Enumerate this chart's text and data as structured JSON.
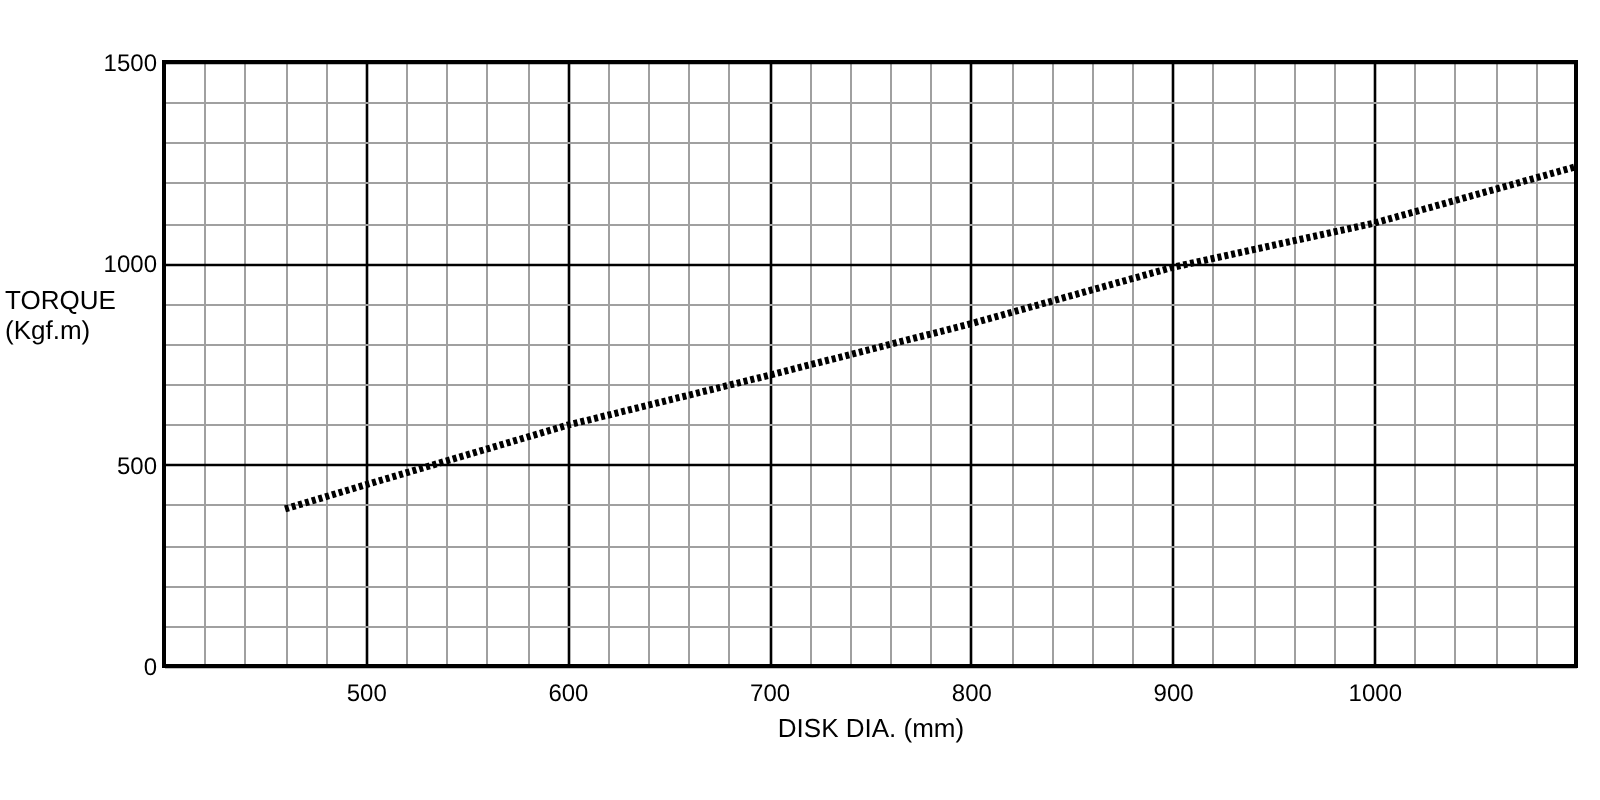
{
  "chart_data": {
    "type": "line",
    "xlabel": "DISK DIA. (mm)",
    "ylabel": "TORQUE (Kgf.m)",
    "x": [
      460,
      500,
      600,
      700,
      800,
      900,
      1000,
      1100
    ],
    "series": [
      {
        "color": "#000000",
        "values": [
          390,
          450,
          598,
          722,
          850,
          990,
          1100,
          1240
        ]
      }
    ],
    "xlim": [
      400,
      1100
    ],
    "xticks": [
      {
        "value": 420,
        "label": null
      },
      {
        "value": 440,
        "label": null
      },
      {
        "value": 460,
        "label": null
      },
      {
        "value": 480,
        "label": null
      },
      500,
      {
        "value": 520,
        "label": null
      },
      {
        "value": 540,
        "label": null
      },
      {
        "value": 560,
        "label": null
      },
      {
        "value": 580,
        "label": null
      },
      600,
      {
        "value": 620,
        "label": null
      },
      {
        "value": 640,
        "label": null
      },
      {
        "value": 660,
        "label": null
      },
      {
        "value": 680,
        "label": null
      },
      700,
      {
        "value": 720,
        "label": null
      },
      {
        "value": 740,
        "label": null
      },
      {
        "value": 760,
        "label": null
      },
      {
        "value": 780,
        "label": null
      },
      800,
      {
        "value": 820,
        "label": null
      },
      {
        "value": 840,
        "label": null
      },
      {
        "value": 860,
        "label": null
      },
      {
        "value": 880,
        "label": null
      },
      900,
      {
        "value": 920,
        "label": null
      },
      {
        "value": 940,
        "label": null
      },
      {
        "value": 960,
        "label": null
      },
      {
        "value": 980,
        "label": null
      },
      1000,
      {
        "value": 1020,
        "label": null
      },
      {
        "value": 1040,
        "label": null
      },
      {
        "value": 1060,
        "label": null
      },
      {
        "value": 1080,
        "label": null
      }
    ],
    "ylim": [
      0,
      1500
    ],
    "yticks": [
      0,
      {
        "value": 100,
        "label": null
      },
      {
        "value": 200,
        "label": null
      },
      {
        "value": 300,
        "label": null
      },
      {
        "value": 400,
        "label": null
      },
      500,
      {
        "value": 600,
        "label": null
      },
      {
        "value": 700,
        "label": null
      },
      {
        "value": 800,
        "label": null
      },
      {
        "value": 900,
        "label": null
      },
      1000,
      {
        "value": 1100,
        "label": null
      },
      {
        "value": 1200,
        "label": null
      },
      {
        "value": 1300,
        "label": null
      },
      {
        "value": 1400,
        "label": null
      },
      1500
    ],
    "grid": true,
    "marker": "none",
    "line_style": "dotted"
  }
}
